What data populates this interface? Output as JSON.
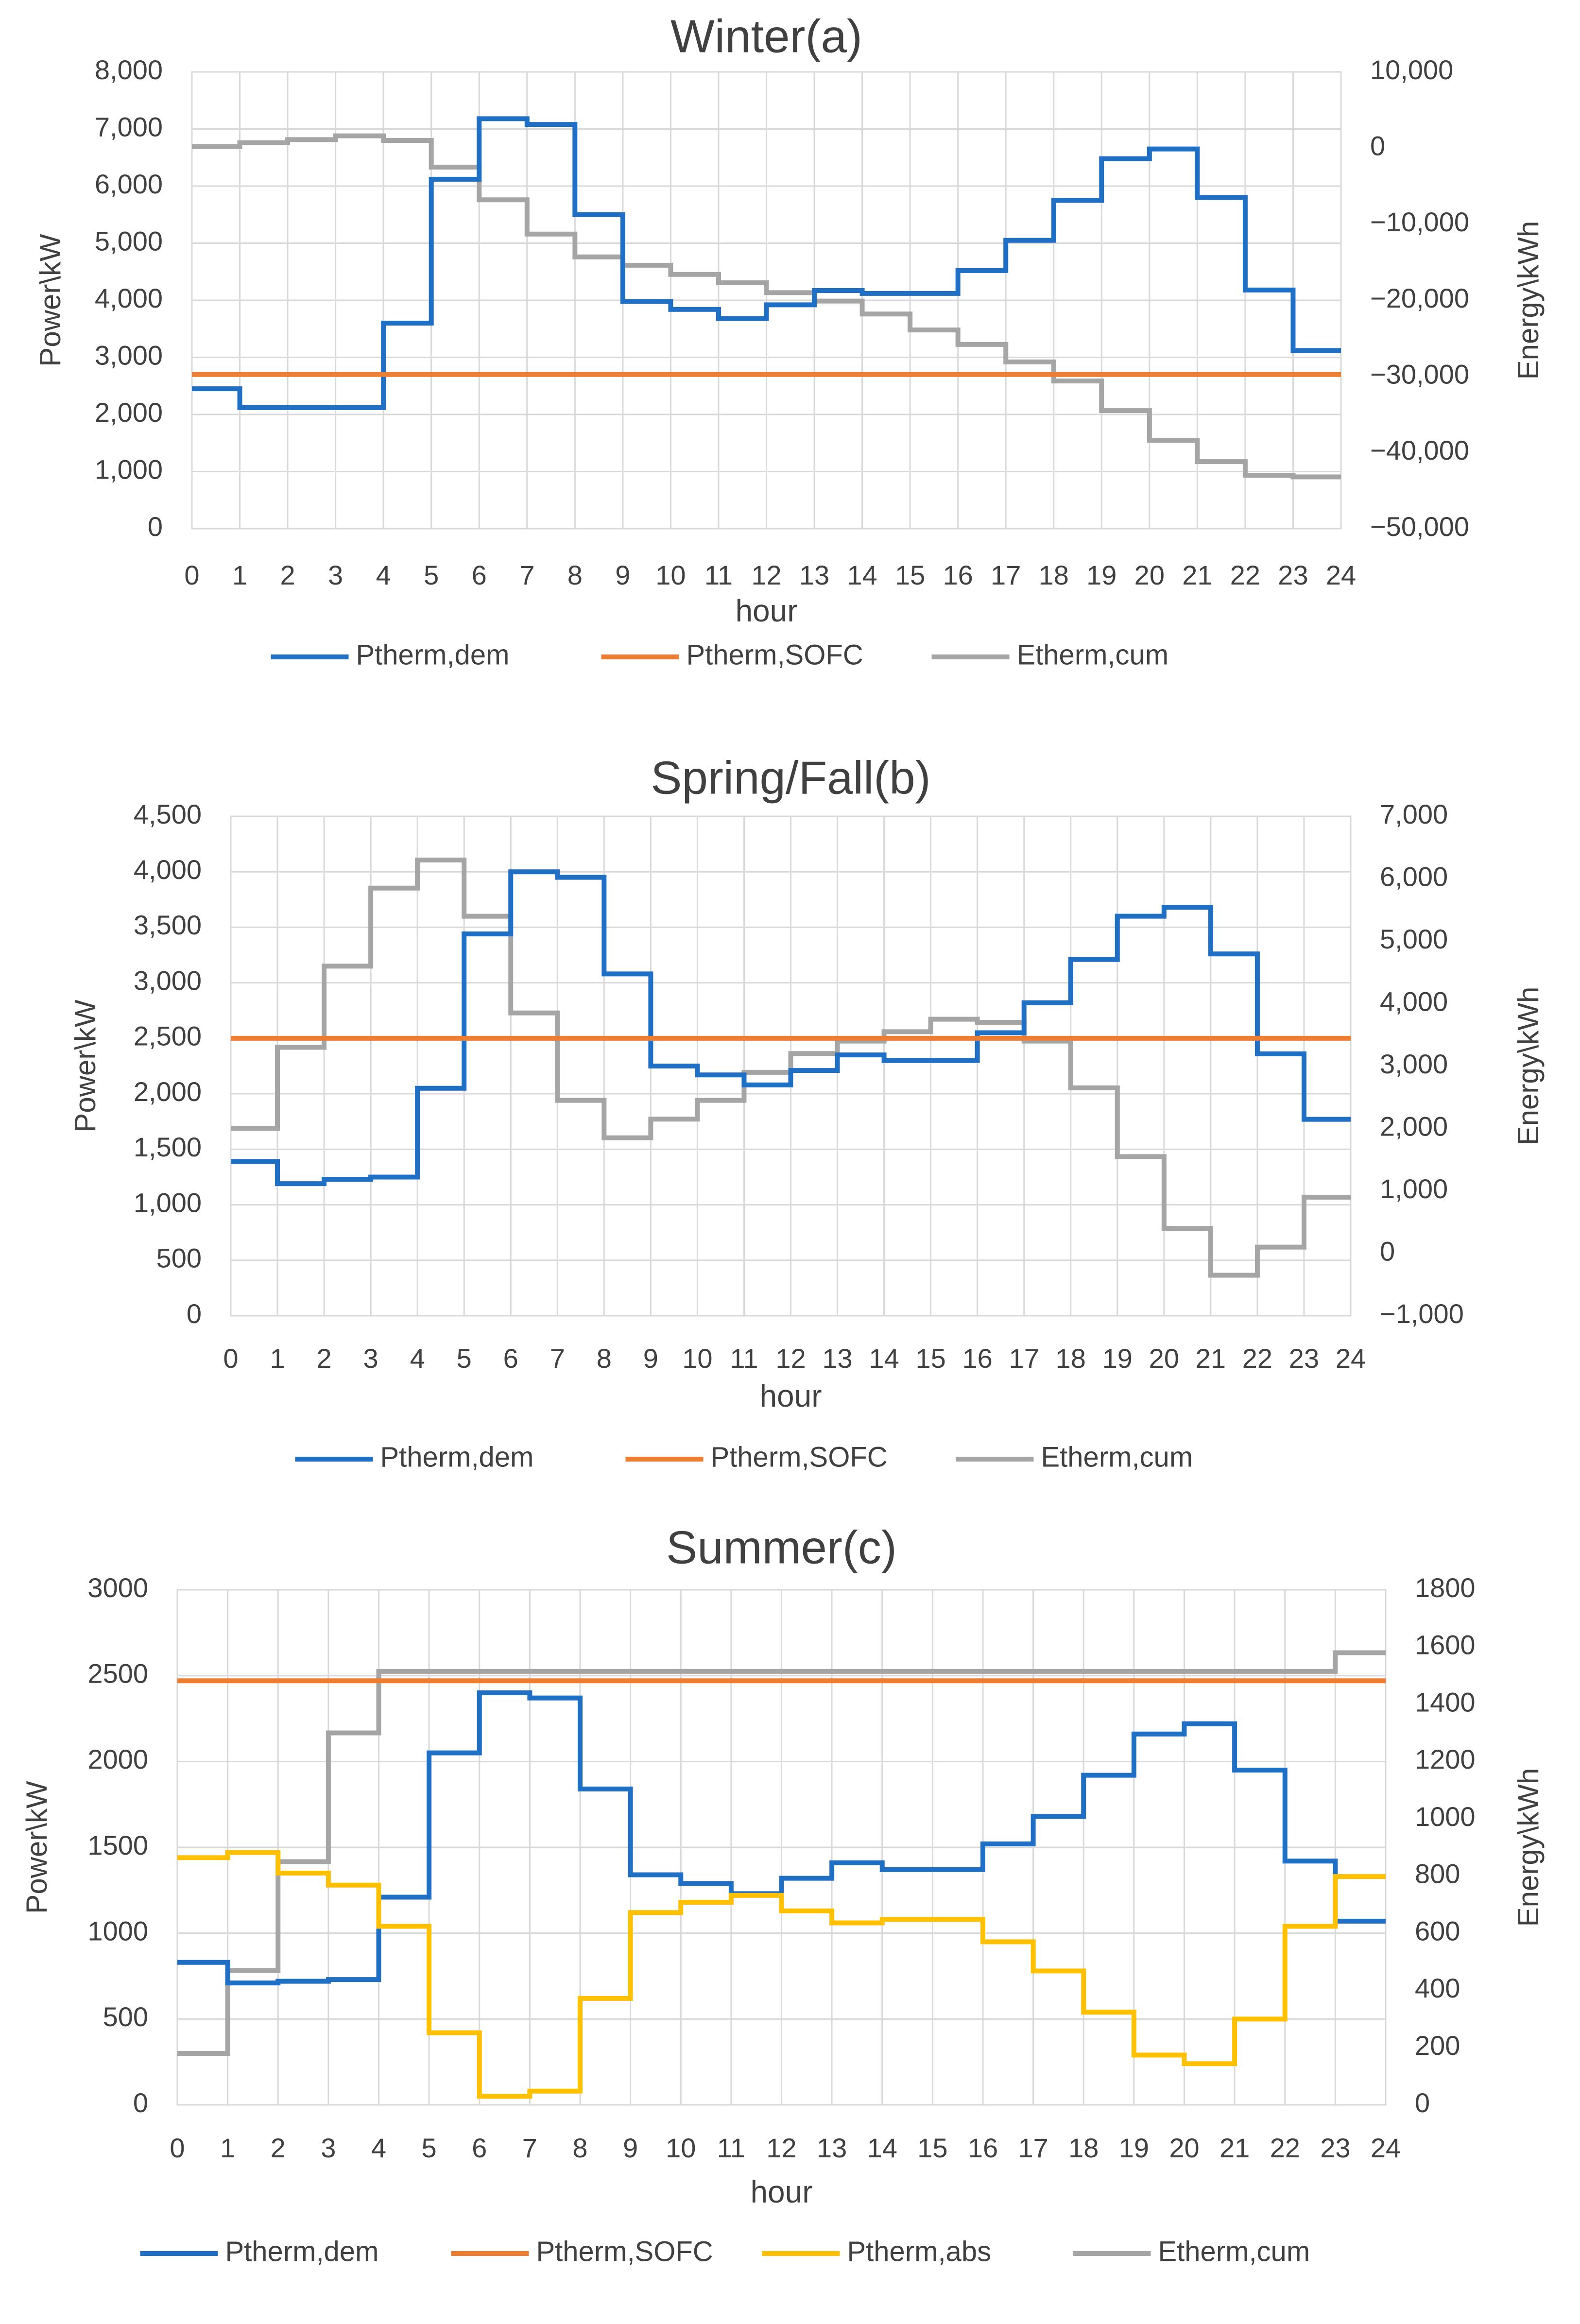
{
  "chart_data": [
    {
      "type": "line",
      "step": true,
      "title": "Winter(a)",
      "xlabel": "hour",
      "ylabel": "Power\\kW",
      "y2label": "Energy\\kWh",
      "xlim": [
        0,
        24
      ],
      "ylim": [
        0,
        8000
      ],
      "y2lim": [
        -50000,
        10000
      ],
      "yticks": [
        0,
        1000,
        2000,
        3000,
        4000,
        5000,
        6000,
        7000,
        8000
      ],
      "y2ticks": [
        -50000,
        -40000,
        -30000,
        -20000,
        -10000,
        0,
        10000
      ],
      "ytick_labels": [
        "0",
        "1,000",
        "2,000",
        "3,000",
        "4,000",
        "5,000",
        "6,000",
        "7,000",
        "8,000"
      ],
      "y2tick_labels": [
        "−50,000",
        "−40,000",
        "−30,000",
        "−20,000",
        "−10,000",
        "0",
        "10,000"
      ],
      "xtick_labels": [
        "0",
        "1",
        "2",
        "3",
        "4",
        "5",
        "6",
        "7",
        "8",
        "9",
        "10",
        "11",
        "12",
        "13",
        "14",
        "15",
        "16",
        "17",
        "18",
        "19",
        "20",
        "21",
        "22",
        "23",
        "24"
      ],
      "legend_position": "bottom",
      "series": [
        {
          "name": "Ptherm,dem",
          "axis": "left",
          "color": "#1f6fc5",
          "values": [
            2450,
            2120,
            2120,
            2120,
            3600,
            6120,
            7180,
            7080,
            5500,
            3980,
            3840,
            3680,
            3920,
            4170,
            4120,
            4120,
            4520,
            5050,
            5750,
            6480,
            6650,
            5800,
            4180,
            3120
          ]
        },
        {
          "name": "Ptherm,SOFC",
          "axis": "left",
          "color": "#ed7d31",
          "values": [
            2700,
            2700,
            2700,
            2700,
            2700,
            2700,
            2700,
            2700,
            2700,
            2700,
            2700,
            2700,
            2700,
            2700,
            2700,
            2700,
            2700,
            2700,
            2700,
            2700,
            2700,
            2700,
            2700,
            2700
          ]
        },
        {
          "name": "Etherm,cum",
          "axis": "right",
          "color": "#a5a5a5",
          "values": [
            200,
            700,
            1100,
            1600,
            1000,
            -2500,
            -6800,
            -11300,
            -14300,
            -15400,
            -16600,
            -17700,
            -19000,
            -20100,
            -21800,
            -23900,
            -25800,
            -28100,
            -30600,
            -34500,
            -38400,
            -41200,
            -43000,
            -43200
          ]
        }
      ]
    },
    {
      "type": "line",
      "step": true,
      "title": "Spring/Fall(b)",
      "xlabel": "hour",
      "ylabel": "Power\\kW",
      "y2label": "Energy\\kWh",
      "xlim": [
        0,
        24
      ],
      "ylim": [
        0,
        4500
      ],
      "y2lim": [
        -1000,
        7000
      ],
      "yticks": [
        0,
        500,
        1000,
        1500,
        2000,
        2500,
        3000,
        3500,
        4000,
        4500
      ],
      "y2ticks": [
        -1000,
        0,
        1000,
        2000,
        3000,
        4000,
        5000,
        6000,
        7000
      ],
      "ytick_labels": [
        "0",
        "500",
        "1,000",
        "1,500",
        "2,000",
        "2,500",
        "3,000",
        "3,500",
        "4,000",
        "4,500"
      ],
      "y2tick_labels": [
        "−1,000",
        "0",
        "1,000",
        "2,000",
        "3,000",
        "4,000",
        "5,000",
        "6,000",
        "7,000"
      ],
      "xtick_labels": [
        "0",
        "1",
        "2",
        "3",
        "4",
        "5",
        "6",
        "7",
        "8",
        "9",
        "10",
        "11",
        "12",
        "13",
        "14",
        "15",
        "16",
        "17",
        "18",
        "19",
        "20",
        "21",
        "22",
        "23",
        "24"
      ],
      "legend_position": "bottom",
      "series": [
        {
          "name": "Ptherm,dem",
          "axis": "left",
          "color": "#1f6fc5",
          "values": [
            1390,
            1190,
            1230,
            1250,
            2050,
            3440,
            4000,
            3950,
            3080,
            2250,
            2170,
            2080,
            2210,
            2350,
            2300,
            2300,
            2550,
            2820,
            3210,
            3600,
            3680,
            3260,
            2360,
            1770
          ]
        },
        {
          "name": "Ptherm,SOFC",
          "axis": "left",
          "color": "#ed7d31",
          "values": [
            2500,
            2500,
            2500,
            2500,
            2500,
            2500,
            2500,
            2500,
            2500,
            2500,
            2500,
            2500,
            2500,
            2500,
            2500,
            2500,
            2500,
            2500,
            2500,
            2500,
            2500,
            2500,
            2500,
            2500
          ]
        },
        {
          "name": "Etherm,cum",
          "axis": "right",
          "color": "#a5a5a5",
          "values": [
            2000,
            3300,
            4600,
            5850,
            6300,
            5400,
            3850,
            2450,
            1850,
            2150,
            2450,
            2900,
            3200,
            3400,
            3550,
            3750,
            3700,
            3400,
            2650,
            1550,
            400,
            -350,
            100,
            900
          ]
        }
      ]
    },
    {
      "type": "line",
      "step": true,
      "title": "Summer(c)",
      "xlabel": "hour",
      "ylabel": "Power\\kW",
      "y2label": "Energy\\kWh",
      "xlim": [
        0,
        24
      ],
      "ylim": [
        0,
        3000
      ],
      "y2lim": [
        0,
        1800
      ],
      "yticks": [
        0,
        500,
        1000,
        1500,
        2000,
        2500,
        3000
      ],
      "y2ticks": [
        0,
        200,
        400,
        600,
        800,
        1000,
        1200,
        1400,
        1600,
        1800
      ],
      "ytick_labels": [
        "0",
        "500",
        "1000",
        "1500",
        "2000",
        "2500",
        "3000"
      ],
      "y2tick_labels": [
        "0",
        "200",
        "400",
        "600",
        "800",
        "1000",
        "1200",
        "1400",
        "1600",
        "1800"
      ],
      "xtick_labels": [
        "0",
        "1",
        "2",
        "3",
        "4",
        "5",
        "6",
        "7",
        "8",
        "9",
        "10",
        "11",
        "12",
        "13",
        "14",
        "15",
        "16",
        "17",
        "18",
        "19",
        "20",
        "21",
        "22",
        "23",
        "24"
      ],
      "legend_position": "bottom",
      "series": [
        {
          "name": "Ptherm,dem",
          "axis": "left",
          "color": "#1f6fc5",
          "values": [
            830,
            710,
            720,
            730,
            1210,
            2050,
            2400,
            2370,
            1840,
            1340,
            1290,
            1230,
            1320,
            1410,
            1370,
            1370,
            1520,
            1680,
            1920,
            2160,
            2220,
            1950,
            1420,
            1070
          ]
        },
        {
          "name": "Ptherm,SOFC",
          "axis": "left",
          "color": "#ed7d31",
          "values": [
            2470,
            2470,
            2470,
            2470,
            2470,
            2470,
            2470,
            2470,
            2470,
            2470,
            2470,
            2470,
            2470,
            2470,
            2470,
            2470,
            2470,
            2470,
            2470,
            2470,
            2470,
            2470,
            2470,
            2470
          ]
        },
        {
          "name": "Ptherm,abs",
          "axis": "left",
          "color": "#ffc000",
          "values": [
            1440,
            1470,
            1350,
            1280,
            1040,
            420,
            50,
            80,
            620,
            1120,
            1180,
            1220,
            1130,
            1060,
            1080,
            1080,
            950,
            780,
            540,
            290,
            240,
            500,
            1040,
            1330
          ]
        },
        {
          "name": "Etherm,cum",
          "axis": "right",
          "color": "#a5a5a5",
          "values": [
            180,
            470,
            850,
            1300,
            1515,
            1515,
            1515,
            1515,
            1515,
            1515,
            1515,
            1515,
            1515,
            1515,
            1515,
            1515,
            1515,
            1515,
            1515,
            1515,
            1515,
            1515,
            1515,
            1580
          ]
        }
      ]
    }
  ]
}
